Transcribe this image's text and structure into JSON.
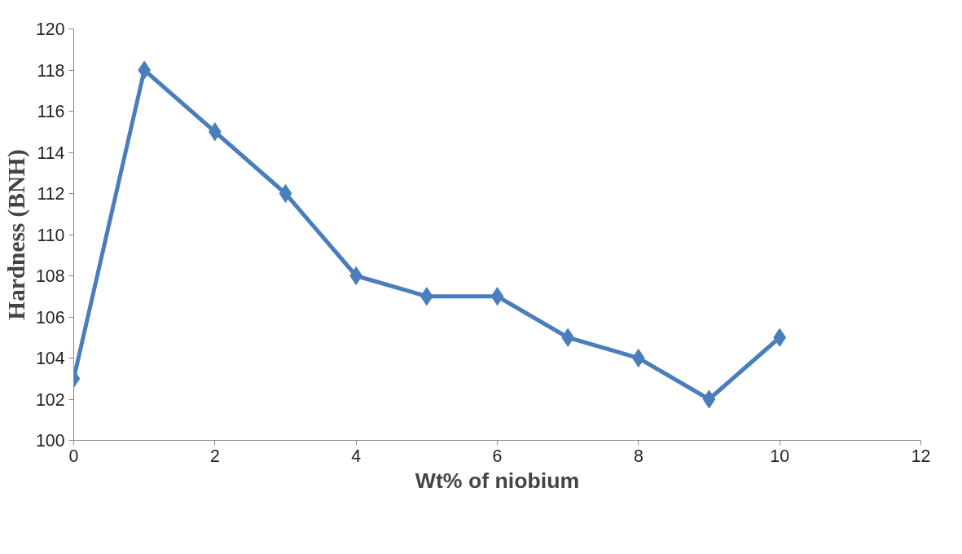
{
  "chart_data": {
    "type": "line",
    "xlabel": "Wt% of niobium",
    "ylabel": "Hardness (BNH)",
    "x": [
      0,
      1,
      2,
      3,
      4,
      5,
      6,
      7,
      8,
      9,
      10
    ],
    "series": [
      {
        "color": "#4a7ebb",
        "values": [
          103,
          118,
          115,
          112,
          108,
          107,
          107,
          105,
          104,
          102,
          105
        ]
      }
    ],
    "xlim": [
      0,
      12
    ],
    "xticks": [
      0,
      2,
      4,
      6,
      8,
      10,
      12
    ],
    "ylim": [
      100,
      120
    ],
    "yticks": [
      100,
      102,
      104,
      106,
      108,
      110,
      112,
      114,
      116,
      118,
      120
    ],
    "marker": "diamond",
    "line_style": "solid"
  }
}
